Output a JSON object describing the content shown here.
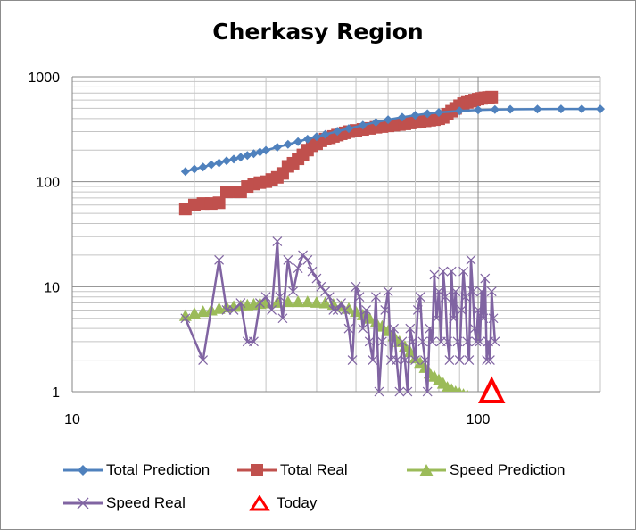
{
  "chart_data": {
    "type": "line",
    "title": "Cherkasy Region",
    "xscale": "log",
    "yscale": "log",
    "xlim": [
      10,
      200
    ],
    "ylim": [
      1,
      1000
    ],
    "x_ticks": [
      "10",
      "100"
    ],
    "y_ticks": [
      "1",
      "10",
      "100",
      "1000"
    ],
    "grid": "major and minor, both axes",
    "legend_position": "bottom",
    "series": [
      {
        "name": "Total Prediction",
        "color": "#4f81bd",
        "marker": "diamond",
        "x": [
          19,
          20,
          21,
          22,
          23,
          24,
          25,
          26,
          27,
          28,
          29,
          30,
          32,
          34,
          36,
          38,
          40,
          42,
          45,
          48,
          52,
          56,
          60,
          65,
          70,
          75,
          80,
          90,
          100,
          110,
          120,
          140,
          160,
          180,
          200
        ],
        "y": [
          125,
          132,
          138,
          145,
          151,
          158,
          164,
          171,
          178,
          185,
          192,
          199,
          213,
          227,
          241,
          255,
          268,
          282,
          302,
          321,
          346,
          369,
          390,
          412,
          430,
          445,
          457,
          473,
          482,
          487,
          490,
          492,
          493,
          493,
          493
        ]
      },
      {
        "name": "Total Real",
        "color": "#c0504d",
        "marker": "square",
        "x": [
          19,
          20,
          21,
          22,
          23,
          24,
          25,
          26,
          27,
          28,
          29,
          30,
          31,
          32,
          33,
          34,
          35,
          36,
          37,
          38,
          39,
          40,
          41,
          42,
          43,
          44,
          45,
          46,
          47,
          48,
          50,
          52,
          54,
          56,
          58,
          60,
          62,
          64,
          66,
          68,
          70,
          72,
          74,
          76,
          78,
          80,
          82,
          84,
          86,
          88,
          90,
          92,
          94,
          96,
          98,
          100,
          102,
          104,
          106,
          108
        ],
        "y": [
          55,
          60,
          62,
          62,
          63,
          80,
          80,
          80,
          90,
          95,
          98,
          100,
          105,
          110,
          120,
          140,
          150,
          165,
          180,
          200,
          220,
          230,
          245,
          255,
          262,
          270,
          278,
          286,
          292,
          300,
          308,
          315,
          322,
          330,
          335,
          340,
          345,
          350,
          355,
          362,
          368,
          375,
          380,
          385,
          390,
          398,
          410,
          440,
          470,
          500,
          530,
          555,
          570,
          585,
          600,
          612,
          622,
          630,
          635,
          640
        ]
      },
      {
        "name": "Speed Prediction",
        "color": "#9bbb59",
        "marker": "triangle",
        "x": [
          19,
          20,
          21,
          22,
          23,
          24,
          25,
          26,
          27,
          28,
          29,
          30,
          32,
          34,
          36,
          38,
          40,
          42,
          44,
          46,
          48,
          50,
          52,
          54,
          56,
          58,
          60,
          62,
          64,
          66,
          68,
          70,
          72,
          74,
          76,
          78,
          80,
          82,
          84,
          86,
          88,
          90,
          92,
          94
        ],
        "y": [
          5.3,
          5.6,
          5.8,
          6.0,
          6.2,
          6.4,
          6.5,
          6.6,
          6.7,
          6.8,
          6.9,
          7.0,
          7.1,
          7.2,
          7.2,
          7.2,
          7.1,
          7.0,
          6.8,
          6.5,
          6.2,
          5.8,
          5.4,
          5.0,
          4.6,
          4.2,
          3.8,
          3.4,
          3.0,
          2.7,
          2.4,
          2.1,
          1.9,
          1.7,
          1.5,
          1.4,
          1.3,
          1.2,
          1.1,
          1.05,
          1.0,
          0.97,
          0.94,
          0.92
        ]
      },
      {
        "name": "Speed Real",
        "color": "#8064a2",
        "marker": "x",
        "x": [
          19,
          21,
          23,
          24,
          25,
          26,
          27,
          28,
          29,
          30,
          31,
          32,
          32.5,
          33,
          34,
          35,
          36,
          37,
          38,
          39,
          40,
          41,
          42,
          43,
          44,
          45,
          46,
          47,
          48,
          49,
          50,
          51,
          52,
          53,
          54,
          55,
          56,
          57,
          58,
          59,
          60,
          61,
          62,
          63,
          64,
          65,
          66,
          67,
          68,
          69,
          70,
          71,
          72,
          73,
          74,
          75,
          76,
          77,
          78,
          79,
          80,
          81,
          82,
          83,
          84,
          85,
          86,
          87,
          88,
          89,
          90,
          91,
          92,
          93,
          94,
          95,
          96,
          97,
          98,
          99,
          100,
          101,
          102,
          103,
          104,
          105,
          106,
          107,
          108,
          109,
          110
        ],
        "y": [
          5,
          2,
          18,
          6,
          6,
          7,
          3,
          3,
          7,
          8,
          6,
          27,
          8,
          5,
          18,
          9,
          15,
          20,
          18,
          14,
          12,
          10,
          9,
          8,
          6,
          6,
          7,
          6,
          4,
          2,
          10,
          8,
          4,
          6,
          3,
          2,
          8,
          1,
          3,
          6,
          9,
          2,
          4,
          2,
          1,
          3,
          2,
          1,
          4,
          3,
          2,
          6,
          8,
          3,
          2,
          1,
          4,
          3,
          13,
          5,
          9,
          3,
          14,
          8,
          3,
          2,
          14,
          5,
          9,
          3,
          2,
          6,
          14,
          8,
          3,
          2,
          18,
          9,
          4,
          3,
          6,
          3,
          9,
          5,
          12,
          2,
          3,
          2,
          9,
          5,
          3
        ]
      },
      {
        "name": "Today",
        "color": "#ff0000",
        "marker": "open-triangle",
        "x": [
          108
        ],
        "y": [
          1
        ]
      }
    ]
  }
}
